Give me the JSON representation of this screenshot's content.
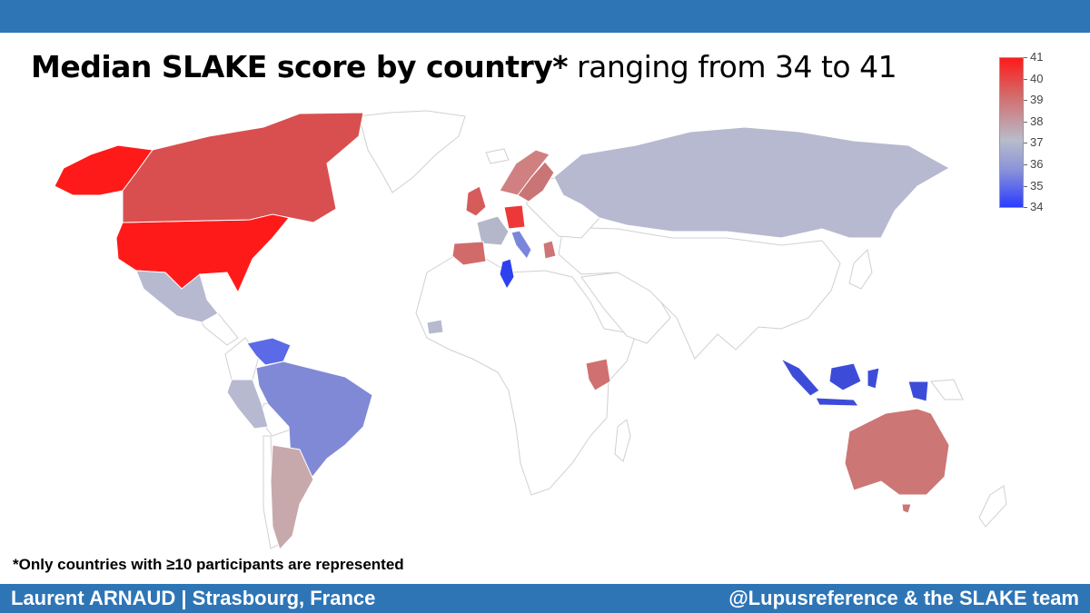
{
  "title": {
    "bold": "Median SLAKE score by country*",
    "regular": "ranging from 34 to 41"
  },
  "legend": {
    "ticks": [
      "41",
      "40",
      "39",
      "38",
      "37",
      "36",
      "35",
      "34"
    ],
    "colors": {
      "high": "#ff1a1a",
      "mid": "#b8bccb",
      "low": "#2b3cff"
    }
  },
  "footnote": "*Only countries with ≥10 participants are represented",
  "footer": {
    "left": "Laurent ARNAUD | Strasbourg, France",
    "right": "@Lupusreference & the SLAKE team"
  },
  "map_data": {
    "type": "choropleth",
    "metric": "Median SLAKE score",
    "range": [
      34,
      41
    ],
    "countries": [
      {
        "name": "United States",
        "value": 41
      },
      {
        "name": "Canada",
        "value": 39.5
      },
      {
        "name": "Mexico",
        "value": 37
      },
      {
        "name": "Venezuela",
        "value": 35.5
      },
      {
        "name": "Peru",
        "value": 37
      },
      {
        "name": "Brazil",
        "value": 36
      },
      {
        "name": "Argentina",
        "value": 37.8
      },
      {
        "name": "United Kingdom",
        "value": 39.5
      },
      {
        "name": "France",
        "value": 36.8
      },
      {
        "name": "Spain",
        "value": 39
      },
      {
        "name": "Germany",
        "value": 40.5
      },
      {
        "name": "Italy",
        "value": 35.8
      },
      {
        "name": "Greece",
        "value": 38.8
      },
      {
        "name": "Norway",
        "value": 38.5
      },
      {
        "name": "Sweden",
        "value": 38.8
      },
      {
        "name": "Russia",
        "value": 37
      },
      {
        "name": "Tunisia",
        "value": 34.3
      },
      {
        "name": "Senegal",
        "value": 37
      },
      {
        "name": "Kenya",
        "value": 39
      },
      {
        "name": "Indonesia",
        "value": 34.5
      },
      {
        "name": "Australia",
        "value": 38.8
      }
    ]
  }
}
